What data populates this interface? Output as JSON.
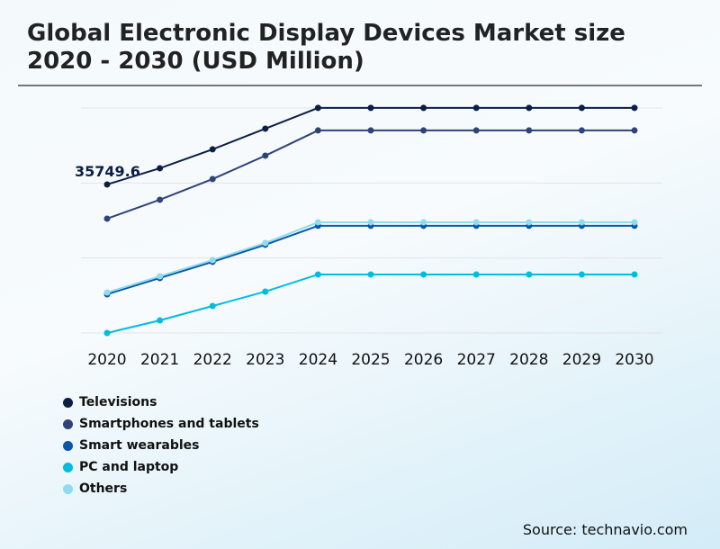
{
  "title": "Global Electronic Display Devices Market size 2020 - 2030 (USD Million)",
  "source": "Source: technavio.com",
  "chart_data": {
    "type": "line",
    "title": "Global Electronic Display Devices Market size 2020 - 2030 (USD Million)",
    "xlabel": "",
    "ylabel": "",
    "categories": [
      "2020",
      "2021",
      "2022",
      "2023",
      "2024",
      "2025",
      "2026",
      "2027",
      "2028",
      "2029",
      "2030"
    ],
    "ylim": [
      0,
      54150
    ],
    "grid": true,
    "legend": "bottom-left",
    "annotation": "35749.6",
    "series": [
      {
        "name": "Televisions",
        "color": "#0b1f45",
        "values": [
          35749.6,
          39650,
          44200,
          49180,
          54170,
          54170,
          54170,
          54170,
          54170,
          54170,
          54170
        ]
      },
      {
        "name": "Smartphones and tablets",
        "color": "#2e4478",
        "values": [
          27520,
          32070,
          37050,
          42680,
          48750,
          48750,
          48750,
          48750,
          48750,
          48750,
          48750
        ]
      },
      {
        "name": "Smart wearables",
        "color": "#0a58a8",
        "values": [
          9320,
          13220,
          17120,
          21240,
          25790,
          25790,
          25790,
          25790,
          25790,
          25790,
          25790
        ]
      },
      {
        "name": "PC and laptop",
        "color": "#00bde0",
        "values": [
          0,
          3030,
          6500,
          9970,
          14090,
          14090,
          14090,
          14090,
          14090,
          14090,
          14090
        ]
      },
      {
        "name": "Others",
        "color": "#8fdcef",
        "values": [
          9750,
          13650,
          17550,
          21670,
          26650,
          26650,
          26650,
          26650,
          26650,
          26650,
          26650
        ]
      }
    ]
  }
}
